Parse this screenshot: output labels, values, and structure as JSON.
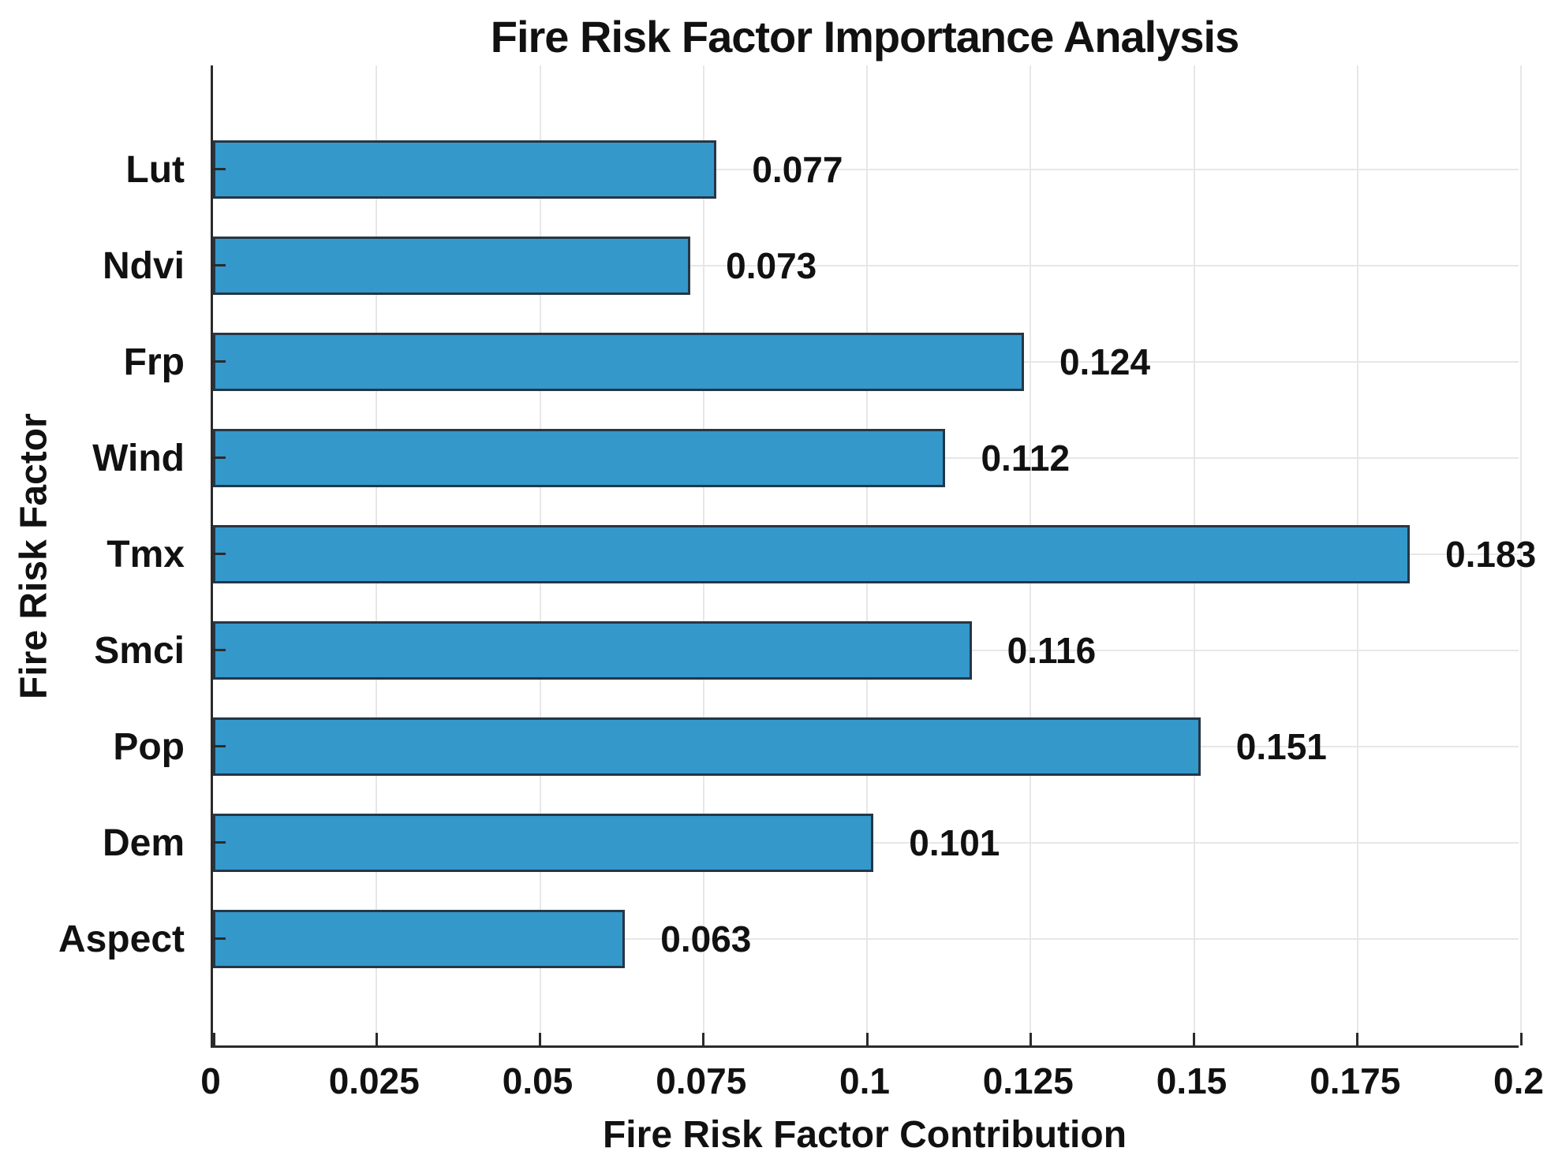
{
  "figure": {
    "background": "#ffffff"
  },
  "chart_data": {
    "type": "bar",
    "orientation": "horizontal",
    "title": "Fire Risk Factor Importance Analysis",
    "xlabel": "Fire Risk Factor Contribution",
    "ylabel": "Fire Risk Factor",
    "categories": [
      "Lut",
      "Ndvi",
      "Frp",
      "Wind",
      "Tmx",
      "Smci",
      "Pop",
      "Dem",
      "Aspect"
    ],
    "values": [
      0.077,
      0.073,
      0.124,
      0.112,
      0.183,
      0.116,
      0.151,
      0.101,
      0.063
    ],
    "value_labels": [
      "0.077",
      "0.073",
      "0.124",
      "0.112",
      "0.183",
      "0.116",
      "0.151",
      "0.101",
      "0.063"
    ],
    "xlim": [
      0,
      0.2
    ],
    "x_tick_values": [
      0,
      0.025,
      0.05,
      0.075,
      0.1,
      0.125,
      0.15,
      0.175,
      0.2
    ],
    "x_tick_labels": [
      "0",
      "0.025",
      "0.05",
      "0.075",
      "0.1",
      "0.125",
      "0.15",
      "0.175",
      "0.2"
    ],
    "grid": true,
    "legend_position": "none",
    "colors": {
      "bar_fill": "#3498cb",
      "bar_edge": "#263645",
      "grid_line": "#e7e7e7",
      "axis_line": "#2b2b2b",
      "text": "#111111"
    }
  }
}
